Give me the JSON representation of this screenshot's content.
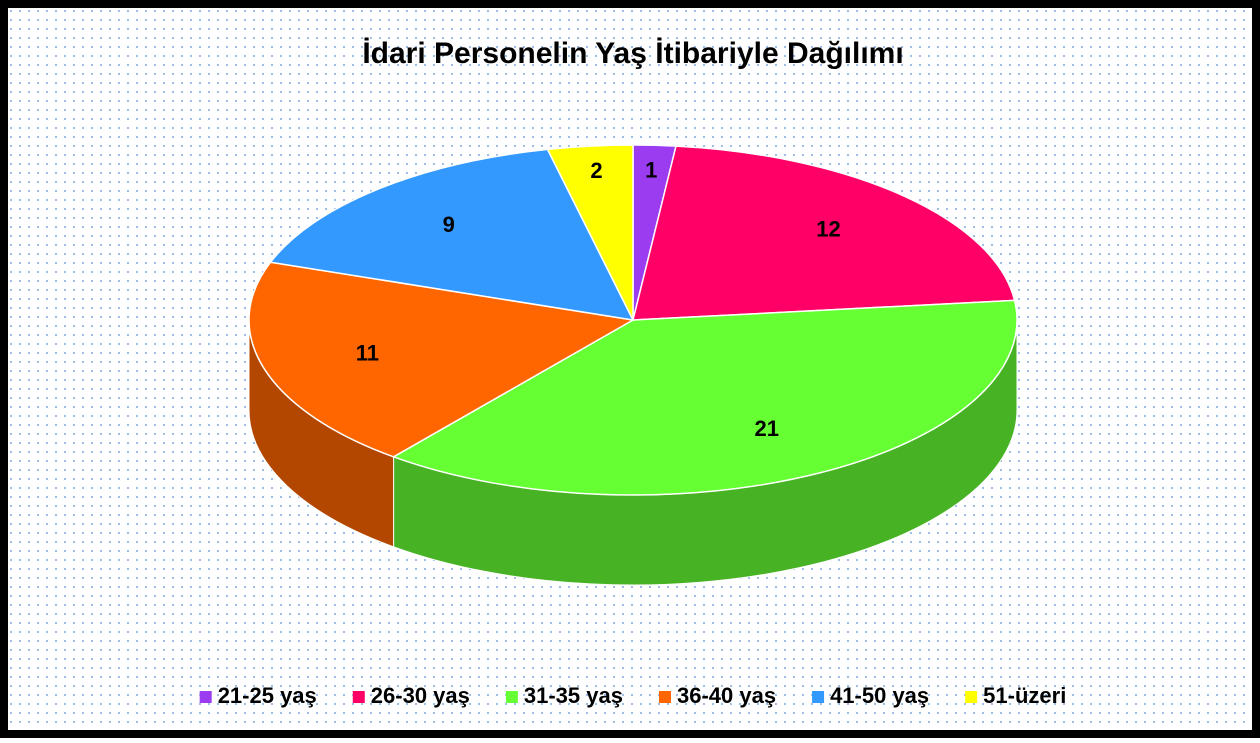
{
  "chart_data": {
    "type": "pie",
    "title": "İdari Personelin Yaş İtibariyle Dağılımı",
    "categories": [
      "21-25 yaş",
      "26-30 yaş",
      "31-35 yaş",
      "36-40 yaş",
      "41-50 yaş",
      "51-üzeri"
    ],
    "values": [
      1,
      12,
      21,
      11,
      9,
      2
    ],
    "colors": [
      "#9b3cf0",
      "#ff0066",
      "#66ff33",
      "#ff6600",
      "#3399ff",
      "#ffff00"
    ],
    "legend": "bottom"
  }
}
